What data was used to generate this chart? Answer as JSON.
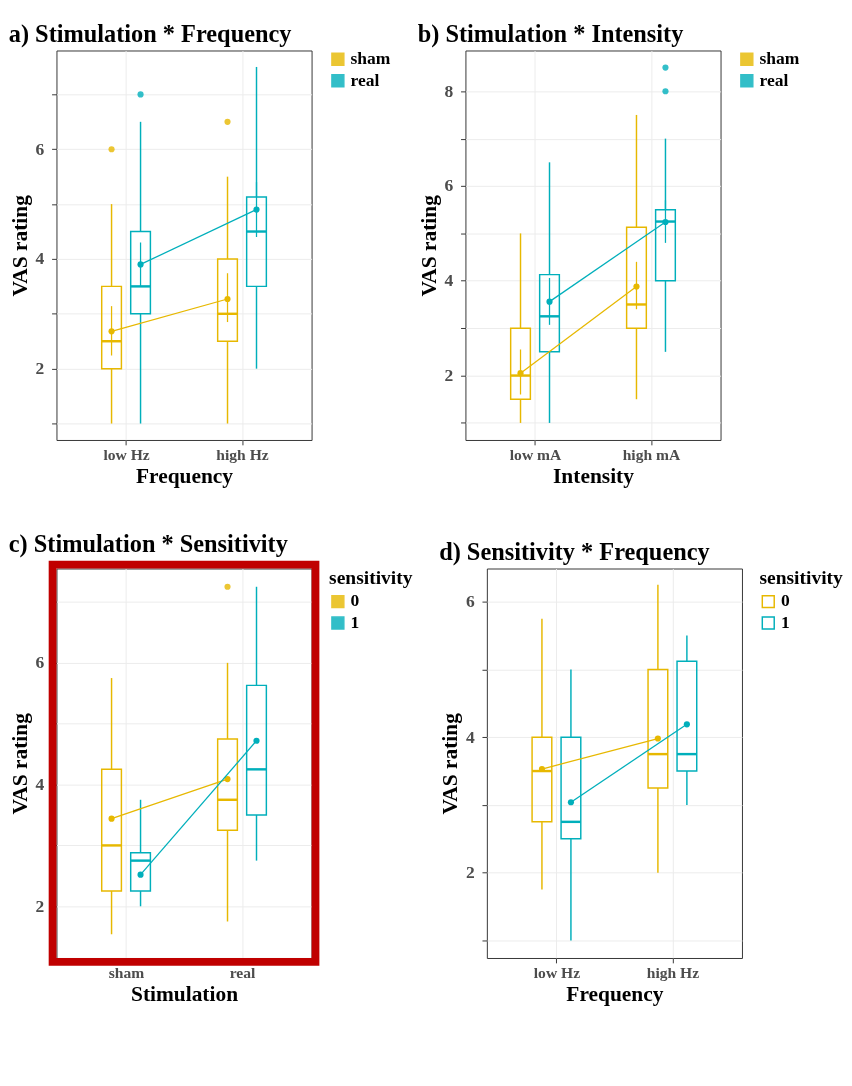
{
  "chart_data": [
    {
      "type": "box",
      "title": "a) Stimulation * Frequency",
      "xlabel": "Frequency",
      "ylabel": "VAS rating",
      "categories": [
        "low Hz",
        "high Hz"
      ],
      "ylim": [
        0.7,
        7.8
      ],
      "yticks": [
        {
          "value": 1,
          "label": null
        },
        2,
        {
          "value": 3,
          "label": null
        },
        4,
        {
          "value": 5,
          "label": null
        },
        6,
        {
          "value": 7,
          "label": null
        }
      ],
      "grid": true,
      "legend": "right",
      "series": [
        {
          "name": "sham",
          "color": "#e7b800",
          "boxes": [
            {
              "low": 1,
              "q1": 2,
              "median": 2.5,
              "q3": 3.5,
              "high": 5,
              "outliers": [
                6
              ]
            },
            {
              "low": 1,
              "q1": 2.5,
              "median": 3,
              "q3": 4,
              "high": 5.5,
              "outliers": [
                6.5
              ]
            }
          ]
        },
        {
          "name": "real",
          "color": "#00afbb",
          "boxes": [
            {
              "low": 1,
              "q1": 3,
              "median": 3.5,
              "q3": 4.5,
              "high": 6.5,
              "outliers": [
                7
              ]
            },
            {
              "low": 2,
              "q1": 3.5,
              "median": 4.5,
              "q3": 5.13,
              "high": 7.5
            }
          ]
        },
        {
          "type": "line",
          "color": "#e7b800",
          "marker": "circle",
          "values": [
            2.68,
            3.27
          ],
          "errors": [
            [
              2.24,
              3.14
            ],
            [
              2.85,
              3.74
            ]
          ]
        },
        {
          "type": "line",
          "color": "#00afbb",
          "marker": "circle",
          "values": [
            3.9,
            4.9
          ],
          "errors": [
            [
              3.5,
              4.3
            ],
            [
              4.4,
              5.4
            ]
          ]
        }
      ]
    },
    {
      "type": "box",
      "title": "b) Stimulation * Intensity",
      "xlabel": "Intensity",
      "ylabel": "VAS rating",
      "categories": [
        "low mA",
        "high mA"
      ],
      "ylim": [
        0.64,
        8.86
      ],
      "yticks": [
        {
          "value": 1,
          "label": null
        },
        2,
        {
          "value": 3,
          "label": null
        },
        4,
        {
          "value": 5,
          "label": null
        },
        6,
        {
          "value": 7,
          "label": null
        },
        8
      ],
      "grid": true,
      "legend": "right",
      "series": [
        {
          "name": "sham",
          "color": "#e7b800",
          "boxes": [
            {
              "low": 1,
              "q1": 1.5,
              "median": 2,
              "q3": 3,
              "high": 5
            },
            {
              "low": 1.5,
              "q1": 3,
              "median": 3.5,
              "q3": 5.13,
              "high": 7.5
            }
          ]
        },
        {
          "name": "real",
          "color": "#00afbb",
          "boxes": [
            {
              "low": 1,
              "q1": 2.5,
              "median": 3.25,
              "q3": 4.13,
              "high": 6.5
            },
            {
              "low": 2.5,
              "q1": 4,
              "median": 5.25,
              "q3": 5.5,
              "high": 7,
              "outliers": [
                8,
                8.5
              ]
            }
          ]
        },
        {
          "type": "line",
          "color": "#e7b800",
          "marker": "circle",
          "values": [
            2.05,
            3.88
          ],
          "errors": [
            [
              1.6,
              2.55
            ],
            [
              3.4,
              4.4
            ]
          ]
        },
        {
          "type": "line",
          "color": "#00afbb",
          "marker": "circle",
          "values": [
            3.56,
            5.24
          ],
          "errors": [
            [
              3.07,
              4.06
            ],
            [
              4.8,
              5.7
            ]
          ]
        }
      ]
    },
    {
      "type": "box",
      "title": "c) Stimulation * Sensitivity",
      "xlabel": "Stimulation",
      "ylabel": "VAS rating",
      "legend_title": "sensitivity",
      "categories": [
        "sham",
        "real"
      ],
      "ylim": [
        1.15,
        7.55
      ],
      "yticks": [
        2,
        {
          "value": 3,
          "label": null
        },
        4,
        {
          "value": 5,
          "label": null
        },
        6,
        {
          "value": 7,
          "label": null
        }
      ],
      "grid": true,
      "legend": "right",
      "series": [
        {
          "name": "0",
          "color": "#e7b800",
          "boxes": [
            {
              "low": 1.54,
              "q1": 2.25,
              "median": 3,
              "q3": 4.25,
              "high": 5.75
            },
            {
              "low": 1.75,
              "q1": 3.25,
              "median": 3.75,
              "q3": 4.75,
              "high": 6,
              "outliers": [
                7.25
              ]
            }
          ]
        },
        {
          "name": "1",
          "color": "#00afbb",
          "boxes": [
            {
              "low": 2,
              "q1": 2.25,
              "median": 2.75,
              "q3": 2.88,
              "high": 3.75
            },
            {
              "low": 2.75,
              "q1": 3.5,
              "median": 4.25,
              "q3": 5.63,
              "high": 7.25
            }
          ]
        },
        {
          "type": "line",
          "color": "#e7b800",
          "marker": "circle",
          "values": [
            3.44,
            4.09
          ]
        },
        {
          "type": "line",
          "color": "#00afbb",
          "marker": "circle",
          "values": [
            2.52,
            4.72
          ]
        }
      ]
    },
    {
      "type": "box",
      "title": "d) Sensitivity * Frequency",
      "xlabel": "Frequency",
      "ylabel": "VAS rating",
      "legend_title": "sensitivity",
      "categories": [
        "low Hz",
        "high Hz"
      ],
      "ylim": [
        0.74,
        6.49
      ],
      "yticks": [
        {
          "value": 1,
          "label": null
        },
        2,
        {
          "value": 3,
          "label": null
        },
        4,
        {
          "value": 5,
          "label": null
        },
        6
      ],
      "grid": true,
      "legend": "right",
      "series": [
        {
          "name": "0",
          "color": "#e7b800",
          "boxes": [
            {
              "low": 1.75,
              "q1": 2.75,
              "median": 3.5,
              "q3": 4,
              "high": 5.75
            },
            {
              "low": 2,
              "q1": 3.25,
              "median": 3.75,
              "q3": 5,
              "high": 6.25
            }
          ]
        },
        {
          "name": "1",
          "color": "#00afbb",
          "boxes": [
            {
              "low": 1,
              "q1": 2.5,
              "median": 2.75,
              "q3": 4,
              "high": 5
            },
            {
              "low": 3,
              "q1": 3.5,
              "median": 3.75,
              "q3": 5.12,
              "high": 5.5
            }
          ]
        },
        {
          "type": "line",
          "color": "#e7b800",
          "marker": "circle",
          "values": [
            3.53,
            3.98
          ]
        },
        {
          "type": "line",
          "color": "#00afbb",
          "marker": "circle",
          "values": [
            3.04,
            4.19
          ]
        }
      ]
    }
  ]
}
